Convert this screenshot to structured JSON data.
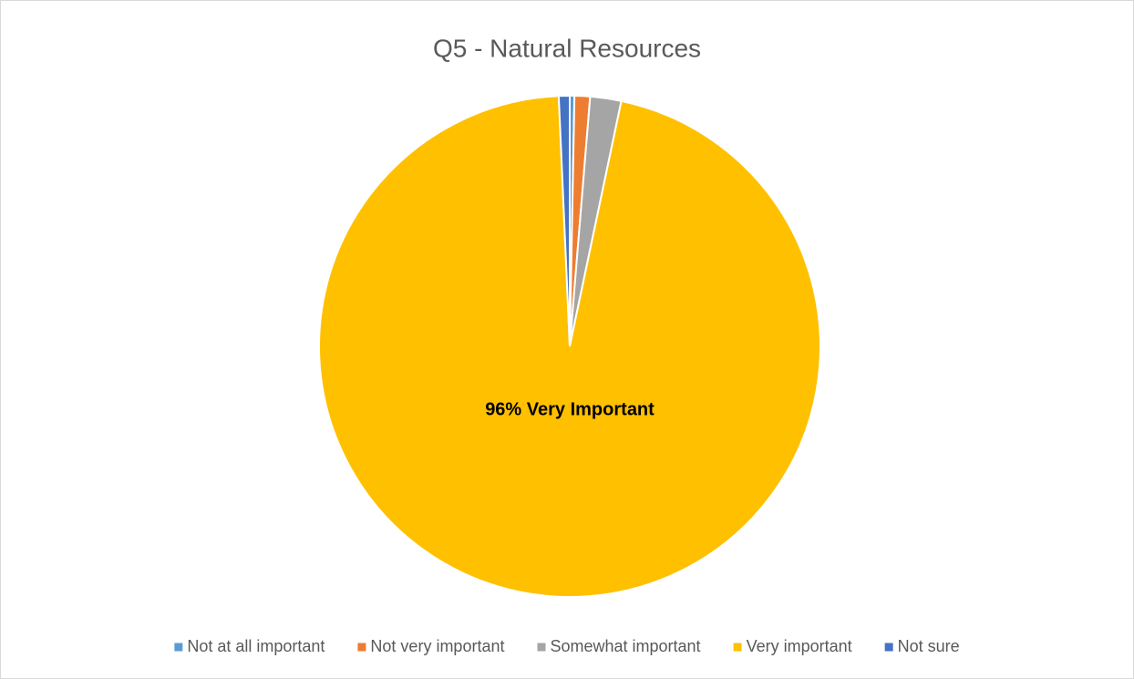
{
  "chart_data": {
    "type": "pie",
    "title": "Q5 - Natural Resources",
    "categories": [
      "Not at all important",
      "Not very important",
      "Somewhat important",
      "Very important",
      "Not sure"
    ],
    "values": [
      0.3,
      1,
      2,
      96,
      0.7
    ],
    "value_labels": [
      null,
      null,
      null,
      "96% Very Important",
      null
    ],
    "colors": [
      "#5b9bd5",
      "#ed7d31",
      "#a5a5a5",
      "#ffc000",
      "#4472c4"
    ],
    "legend": "bottom"
  }
}
